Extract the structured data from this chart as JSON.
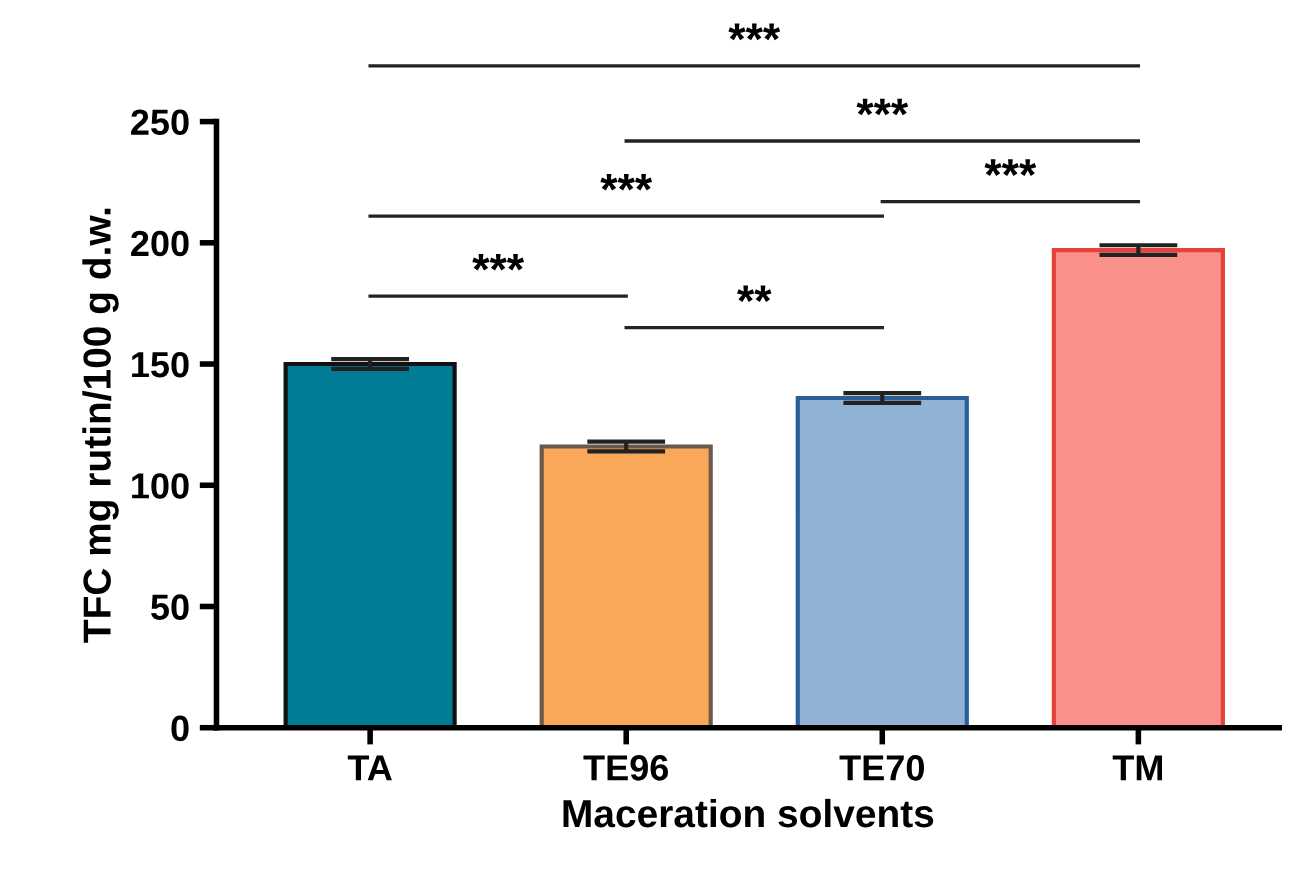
{
  "chart_data": {
    "type": "bar",
    "xlabel": "Maceration solvents",
    "ylabel": "TFC mg rutin/100 g d.w.",
    "categories": [
      "TA",
      "TE96",
      "TE70",
      "TM"
    ],
    "values": [
      150,
      116,
      136,
      197
    ],
    "errors": [
      2,
      2,
      2,
      2
    ],
    "colors": [
      "#007c95",
      "#f9a85a",
      "#8fb2d5",
      "#f99089"
    ],
    "ylim": [
      0,
      250
    ],
    "yticks": [
      0,
      50,
      100,
      150,
      200,
      250
    ],
    "grid": false,
    "annotations": [
      "***",
      "***",
      "***",
      "***",
      "***",
      "**"
    ]
  }
}
